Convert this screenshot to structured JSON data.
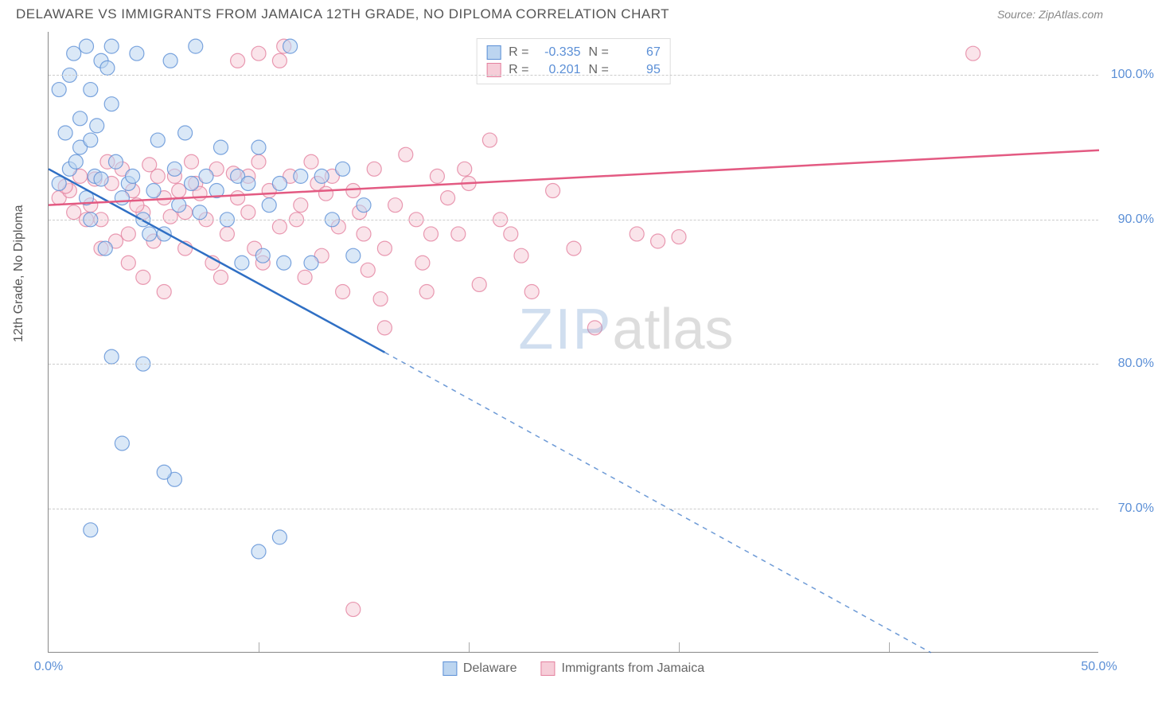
{
  "header": {
    "title": "DELAWARE VS IMMIGRANTS FROM JAMAICA 12TH GRADE, NO DIPLOMA CORRELATION CHART",
    "source": "Source: ZipAtlas.com"
  },
  "ylabel": "12th Grade, No Diploma",
  "watermark": {
    "part1": "ZIP",
    "part2": "atlas"
  },
  "colors": {
    "blue_fill": "#bcd5f0",
    "blue_stroke": "#5b8fd6",
    "pink_fill": "#f6cdd8",
    "pink_stroke": "#e4819f",
    "blue_line": "#2f6fc4",
    "pink_line": "#e35a82",
    "grid": "#cccccc",
    "axis": "#888888",
    "tick_text": "#5b8fd6",
    "title_text": "#555555"
  },
  "chart": {
    "type": "scatter",
    "xlim": [
      0,
      50
    ],
    "ylim": [
      60,
      103
    ],
    "yticks": [
      70,
      80,
      90,
      100
    ],
    "ytick_labels": [
      "70.0%",
      "80.0%",
      "90.0%",
      "100.0%"
    ],
    "xticks": [
      0,
      10,
      20,
      30,
      40,
      50
    ],
    "xtick_labels": [
      "0.0%",
      "",
      "",
      "",
      "",
      "50.0%"
    ],
    "marker_radius": 9,
    "marker_opacity": 0.55,
    "line_width": 2.5
  },
  "legend_top": {
    "rows": [
      {
        "swatch": "blue",
        "r_label": "R =",
        "r_val": "-0.335",
        "n_label": "N =",
        "n_val": "67"
      },
      {
        "swatch": "pink",
        "r_label": "R =",
        "r_val": "0.201",
        "n_label": "N =",
        "n_val": "95"
      }
    ]
  },
  "legend_bottom": {
    "items": [
      {
        "swatch": "blue",
        "label": "Delaware"
      },
      {
        "swatch": "pink",
        "label": "Immigrants from Jamaica"
      }
    ]
  },
  "series": {
    "blue": {
      "trend": {
        "x1": 0,
        "y1": 93.5,
        "x2_solid": 16,
        "y2_solid": 80.8,
        "x2_dash": 42,
        "y2_dash": 60
      },
      "points": [
        [
          0.5,
          92.5
        ],
        [
          1.0,
          93.5
        ],
        [
          1.2,
          101.5
        ],
        [
          1.5,
          95
        ],
        [
          1.8,
          102
        ],
        [
          2.0,
          90
        ],
        [
          2.2,
          93
        ],
        [
          2.5,
          101
        ],
        [
          2.7,
          88
        ],
        [
          2.0,
          99
        ],
        [
          3.0,
          102
        ],
        [
          3.2,
          94
        ],
        [
          3.5,
          91.5
        ],
        [
          3.0,
          80.5
        ],
        [
          3.8,
          92.5
        ],
        [
          4.0,
          93
        ],
        [
          4.2,
          101.5
        ],
        [
          4.5,
          90
        ],
        [
          2.0,
          68.5
        ],
        [
          5.0,
          92
        ],
        [
          5.2,
          95.5
        ],
        [
          5.5,
          89
        ],
        [
          5.8,
          101
        ],
        [
          6.0,
          93.5
        ],
        [
          6.2,
          91
        ],
        [
          3.5,
          74.5
        ],
        [
          6.5,
          96
        ],
        [
          6.8,
          92.5
        ],
        [
          7.0,
          102
        ],
        [
          7.2,
          90.5
        ],
        [
          7.5,
          93
        ],
        [
          6.0,
          72
        ],
        [
          8.0,
          92
        ],
        [
          8.2,
          95
        ],
        [
          8.5,
          90
        ],
        [
          9.0,
          93
        ],
        [
          9.2,
          87
        ],
        [
          9.5,
          92.5
        ],
        [
          10.0,
          95
        ],
        [
          10.2,
          87.5
        ],
        [
          4.5,
          80
        ],
        [
          10.5,
          91
        ],
        [
          5.5,
          72.5
        ],
        [
          11.0,
          92.5
        ],
        [
          11.2,
          87
        ],
        [
          11.5,
          102
        ],
        [
          12.0,
          93
        ],
        [
          11.0,
          68
        ],
        [
          10.0,
          67
        ],
        [
          12.5,
          87
        ],
        [
          13.0,
          93
        ],
        [
          13.5,
          90
        ],
        [
          14.0,
          93.5
        ],
        [
          14.5,
          87.5
        ],
        [
          15.0,
          91
        ],
        [
          1.5,
          97
        ],
        [
          0.8,
          96
        ],
        [
          1.0,
          100
        ],
        [
          2.3,
          96.5
        ],
        [
          3.0,
          98
        ],
        [
          2.8,
          100.5
        ],
        [
          0.5,
          99
        ],
        [
          1.8,
          91.5
        ],
        [
          2.5,
          92.8
        ],
        [
          4.8,
          89
        ],
        [
          1.3,
          94
        ],
        [
          2.0,
          95.5
        ]
      ]
    },
    "pink": {
      "trend": {
        "x1": 0,
        "y1": 91,
        "x2": 50,
        "y2": 94.8
      },
      "points": [
        [
          0.5,
          91.5
        ],
        [
          1.0,
          92
        ],
        [
          1.5,
          93
        ],
        [
          2.0,
          91
        ],
        [
          2.5,
          90
        ],
        [
          3.0,
          92.5
        ],
        [
          3.5,
          93.5
        ],
        [
          4.0,
          92
        ],
        [
          4.5,
          90.5
        ],
        [
          5.0,
          88.5
        ],
        [
          5.2,
          93
        ],
        [
          5.5,
          91.5
        ],
        [
          6.0,
          93
        ],
        [
          6.5,
          88
        ],
        [
          7.0,
          92.5
        ],
        [
          7.5,
          90
        ],
        [
          8.0,
          93.5
        ],
        [
          8.5,
          89
        ],
        [
          9.0,
          91.5
        ],
        [
          9.5,
          93
        ],
        [
          10.0,
          94
        ],
        [
          10.2,
          87
        ],
        [
          10.5,
          92
        ],
        [
          11.0,
          89.5
        ],
        [
          11.2,
          102
        ],
        [
          11.5,
          93
        ],
        [
          12.0,
          91
        ],
        [
          12.5,
          94
        ],
        [
          13.0,
          87.5
        ],
        [
          13.5,
          93
        ],
        [
          14.0,
          85
        ],
        [
          14.5,
          92
        ],
        [
          15.0,
          89
        ],
        [
          15.2,
          86.5
        ],
        [
          15.5,
          93.5
        ],
        [
          16.0,
          88
        ],
        [
          17.0,
          94.5
        ],
        [
          17.5,
          90
        ],
        [
          18.0,
          85
        ],
        [
          18.5,
          93
        ],
        [
          19.0,
          91.5
        ],
        [
          19.5,
          89
        ],
        [
          20.0,
          92.5
        ],
        [
          20.5,
          85.5
        ],
        [
          21.0,
          95.5
        ],
        [
          22.0,
          89
        ],
        [
          23.0,
          85
        ],
        [
          24.0,
          92
        ],
        [
          25.0,
          88
        ],
        [
          26.0,
          82.5
        ],
        [
          28.0,
          89
        ],
        [
          29.0,
          88.5
        ],
        [
          44.0,
          101.5
        ],
        [
          1.8,
          90
        ],
        [
          2.2,
          92.8
        ],
        [
          3.8,
          89
        ],
        [
          4.2,
          91
        ],
        [
          6.8,
          94
        ],
        [
          7.8,
          87
        ],
        [
          0.8,
          92.3
        ],
        [
          1.2,
          90.5
        ],
        [
          2.8,
          94
        ],
        [
          3.2,
          88.5
        ],
        [
          4.8,
          93.8
        ],
        [
          5.8,
          90.2
        ],
        [
          6.2,
          92
        ],
        [
          7.2,
          91.8
        ],
        [
          8.8,
          93.2
        ],
        [
          9.8,
          88
        ],
        [
          11.8,
          90
        ],
        [
          12.8,
          92.5
        ],
        [
          13.8,
          89.5
        ],
        [
          16.5,
          91
        ],
        [
          17.8,
          87
        ],
        [
          19.8,
          93.5
        ],
        [
          21.5,
          90
        ],
        [
          11.0,
          101
        ],
        [
          10.0,
          101.5
        ],
        [
          9.0,
          101
        ],
        [
          16.0,
          82.5
        ],
        [
          14.5,
          63
        ],
        [
          2.5,
          88
        ],
        [
          3.8,
          87
        ],
        [
          4.5,
          86
        ],
        [
          5.5,
          85
        ],
        [
          6.5,
          90.5
        ],
        [
          8.2,
          86
        ],
        [
          9.5,
          90.5
        ],
        [
          12.2,
          86
        ],
        [
          13.2,
          91.8
        ],
        [
          14.8,
          90.5
        ],
        [
          15.8,
          84.5
        ],
        [
          18.2,
          89
        ],
        [
          22.5,
          87.5
        ],
        [
          30,
          88.8
        ]
      ]
    }
  }
}
